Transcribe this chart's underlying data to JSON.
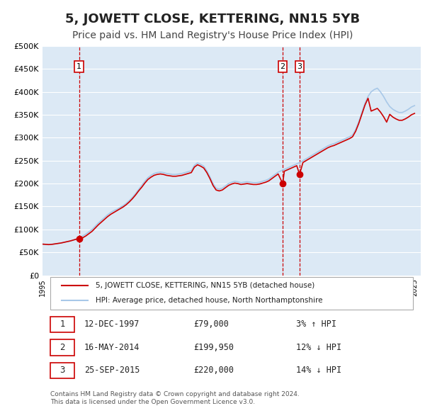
{
  "title": "5, JOWETT CLOSE, KETTERING, NN15 5YB",
  "subtitle": "Price paid vs. HM Land Registry's House Price Index (HPI)",
  "title_fontsize": 13,
  "subtitle_fontsize": 10,
  "bg_color": "#ffffff",
  "plot_bg_color": "#dce9f5",
  "grid_color": "#ffffff",
  "hpi_color": "#a8c8e8",
  "price_color": "#cc0000",
  "sale_marker_color": "#cc0000",
  "vline_color": "#cc0000",
  "ylim": [
    0,
    500000
  ],
  "yticks": [
    0,
    50000,
    100000,
    150000,
    200000,
    250000,
    300000,
    350000,
    400000,
    450000,
    500000
  ],
  "ytick_labels": [
    "£0",
    "£50K",
    "£100K",
    "£150K",
    "£200K",
    "£250K",
    "£300K",
    "£350K",
    "£400K",
    "£450K",
    "£500K"
  ],
  "xlim_start": 1995.0,
  "xlim_end": 2025.5,
  "xticks": [
    1995,
    1996,
    1997,
    1998,
    1999,
    2000,
    2001,
    2002,
    2003,
    2004,
    2005,
    2006,
    2007,
    2008,
    2009,
    2010,
    2011,
    2012,
    2013,
    2014,
    2015,
    2016,
    2017,
    2018,
    2019,
    2020,
    2021,
    2022,
    2023,
    2024,
    2025
  ],
  "sale1_x": 1997.95,
  "sale1_y": 79000,
  "sale2_x": 2014.37,
  "sale2_y": 199950,
  "sale3_x": 2015.73,
  "sale3_y": 220000,
  "legend_label_price": "5, JOWETT CLOSE, KETTERING, NN15 5YB (detached house)",
  "legend_label_hpi": "HPI: Average price, detached house, North Northamptonshire",
  "table_rows": [
    {
      "num": "1",
      "date": "12-DEC-1997",
      "price": "£79,000",
      "pct": "3% ↑ HPI"
    },
    {
      "num": "2",
      "date": "16-MAY-2014",
      "price": "£199,950",
      "pct": "12% ↓ HPI"
    },
    {
      "num": "3",
      "date": "25-SEP-2015",
      "price": "£220,000",
      "pct": "14% ↓ HPI"
    }
  ],
  "footer": "Contains HM Land Registry data © Crown copyright and database right 2024.\nThis data is licensed under the Open Government Licence v3.0.",
  "hpi_data_x": [
    1995.0,
    1995.25,
    1995.5,
    1995.75,
    1996.0,
    1996.25,
    1996.5,
    1996.75,
    1997.0,
    1997.25,
    1997.5,
    1997.75,
    1998.0,
    1998.25,
    1998.5,
    1998.75,
    1999.0,
    1999.25,
    1999.5,
    1999.75,
    2000.0,
    2000.25,
    2000.5,
    2000.75,
    2001.0,
    2001.25,
    2001.5,
    2001.75,
    2002.0,
    2002.25,
    2002.5,
    2002.75,
    2003.0,
    2003.25,
    2003.5,
    2003.75,
    2004.0,
    2004.25,
    2004.5,
    2004.75,
    2005.0,
    2005.25,
    2005.5,
    2005.75,
    2006.0,
    2006.25,
    2006.5,
    2006.75,
    2007.0,
    2007.25,
    2007.5,
    2007.75,
    2008.0,
    2008.25,
    2008.5,
    2008.75,
    2009.0,
    2009.25,
    2009.5,
    2009.75,
    2010.0,
    2010.25,
    2010.5,
    2010.75,
    2011.0,
    2011.25,
    2011.5,
    2011.75,
    2012.0,
    2012.25,
    2012.5,
    2012.75,
    2013.0,
    2013.25,
    2013.5,
    2013.75,
    2014.0,
    2014.25,
    2014.5,
    2014.75,
    2015.0,
    2015.25,
    2015.5,
    2015.75,
    2016.0,
    2016.25,
    2016.5,
    2016.75,
    2017.0,
    2017.25,
    2017.5,
    2017.75,
    2018.0,
    2018.25,
    2018.5,
    2018.75,
    2019.0,
    2019.25,
    2019.5,
    2019.75,
    2020.0,
    2020.25,
    2020.5,
    2020.75,
    2021.0,
    2021.25,
    2021.5,
    2021.75,
    2022.0,
    2022.25,
    2022.5,
    2022.75,
    2023.0,
    2023.25,
    2023.5,
    2023.75,
    2024.0,
    2024.25,
    2024.5,
    2024.75,
    2025.0
  ],
  "hpi_data_y": [
    68000,
    67500,
    67000,
    67500,
    68500,
    69500,
    70500,
    72000,
    73500,
    75000,
    77000,
    79000,
    82000,
    86000,
    90000,
    95000,
    100000,
    107000,
    114000,
    120000,
    126000,
    132000,
    137000,
    141000,
    144000,
    148000,
    152000,
    157000,
    163000,
    170000,
    178000,
    187000,
    196000,
    205000,
    213000,
    218000,
    222000,
    224000,
    225000,
    224000,
    222000,
    221000,
    220000,
    220000,
    221000,
    222000,
    224000,
    226000,
    228000,
    240000,
    245000,
    242000,
    238000,
    228000,
    215000,
    200000,
    190000,
    188000,
    190000,
    195000,
    200000,
    203000,
    205000,
    204000,
    202000,
    203000,
    204000,
    203000,
    202000,
    202000,
    203000,
    205000,
    207000,
    210000,
    215000,
    220000,
    225000,
    228000,
    231000,
    234000,
    237000,
    240000,
    243000,
    246000,
    250000,
    254000,
    258000,
    262000,
    266000,
    270000,
    274000,
    278000,
    282000,
    285000,
    287000,
    290000,
    293000,
    296000,
    299000,
    302000,
    306000,
    318000,
    335000,
    355000,
    375000,
    390000,
    400000,
    405000,
    408000,
    400000,
    390000,
    378000,
    368000,
    362000,
    358000,
    355000,
    355000,
    358000,
    362000,
    367000,
    370000
  ],
  "price_data_x": [
    1995.0,
    1995.25,
    1995.5,
    1995.75,
    1996.0,
    1996.25,
    1996.5,
    1996.75,
    1997.0,
    1997.25,
    1997.5,
    1997.75,
    1997.95,
    1998.25,
    1998.5,
    1998.75,
    1999.0,
    1999.25,
    1999.5,
    1999.75,
    2000.0,
    2000.25,
    2000.5,
    2000.75,
    2001.0,
    2001.25,
    2001.5,
    2001.75,
    2002.0,
    2002.25,
    2002.5,
    2002.75,
    2003.0,
    2003.25,
    2003.5,
    2003.75,
    2004.0,
    2004.25,
    2004.5,
    2004.75,
    2005.0,
    2005.25,
    2005.5,
    2005.75,
    2006.0,
    2006.25,
    2006.5,
    2006.75,
    2007.0,
    2007.25,
    2007.5,
    2007.75,
    2008.0,
    2008.25,
    2008.5,
    2008.75,
    2009.0,
    2009.25,
    2009.5,
    2009.75,
    2010.0,
    2010.25,
    2010.5,
    2010.75,
    2011.0,
    2011.25,
    2011.5,
    2011.75,
    2012.0,
    2012.25,
    2012.5,
    2012.75,
    2013.0,
    2013.25,
    2013.5,
    2013.75,
    2014.0,
    2014.37,
    2014.5,
    2014.75,
    2015.0,
    2015.25,
    2015.5,
    2015.73,
    2016.0,
    2016.25,
    2016.5,
    2016.75,
    2017.0,
    2017.25,
    2017.5,
    2017.75,
    2018.0,
    2018.25,
    2018.5,
    2018.75,
    2019.0,
    2019.25,
    2019.5,
    2019.75,
    2020.0,
    2020.25,
    2020.5,
    2020.75,
    2021.0,
    2021.25,
    2021.5,
    2021.75,
    2022.0,
    2022.25,
    2022.5,
    2022.75,
    2023.0,
    2023.25,
    2023.5,
    2023.75,
    2024.0,
    2024.25,
    2024.5,
    2024.75,
    2025.0
  ],
  "price_data_y": [
    68000,
    67500,
    67000,
    67500,
    68500,
    69500,
    70500,
    72000,
    73500,
    75000,
    77000,
    79000,
    79000,
    82000,
    86000,
    91000,
    96000,
    103000,
    110000,
    116000,
    122000,
    128000,
    133000,
    137000,
    141000,
    145000,
    149000,
    154000,
    160000,
    167000,
    175000,
    184000,
    192000,
    201000,
    209000,
    214000,
    218000,
    220000,
    221000,
    220000,
    218000,
    217000,
    216000,
    216000,
    217000,
    218000,
    220000,
    222000,
    224000,
    236000,
    241000,
    238000,
    234000,
    224000,
    211000,
    196000,
    186000,
    184000,
    186000,
    191000,
    196000,
    199000,
    201000,
    200000,
    198000,
    199000,
    200000,
    199000,
    198000,
    198000,
    199000,
    201000,
    203000,
    206000,
    211000,
    216000,
    221000,
    199950,
    227000,
    230000,
    233000,
    236000,
    239000,
    220000,
    246000,
    250000,
    254000,
    258000,
    262000,
    266000,
    270000,
    274000,
    278000,
    281000,
    283000,
    286000,
    289000,
    292000,
    295000,
    298000,
    302000,
    314000,
    331000,
    351000,
    371000,
    386000,
    358000,
    361000,
    364000,
    356000,
    346000,
    334000,
    351000,
    345000,
    341000,
    338000,
    338000,
    341000,
    345000,
    350000,
    353000
  ]
}
